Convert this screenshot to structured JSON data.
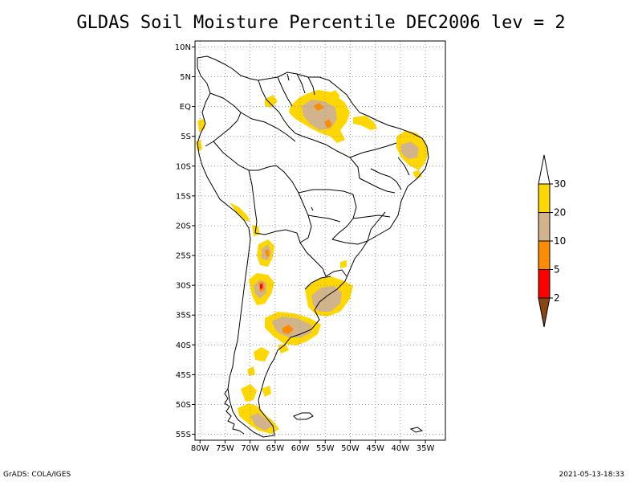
{
  "title": "GLDAS Soil Moisture Percentile DEC2006 lev = 2",
  "footer": {
    "credit": "GrADS: COLA/IGES",
    "timestamp": "2021-05-13-18:33"
  },
  "map": {
    "region": "South America",
    "lon_range": [
      -81,
      -31
    ],
    "lat_range": [
      -56,
      11
    ],
    "lon_ticks": [
      {
        "value": -80,
        "label": "80W"
      },
      {
        "value": -75,
        "label": "75W"
      },
      {
        "value": -70,
        "label": "70W"
      },
      {
        "value": -65,
        "label": "65W"
      },
      {
        "value": -60,
        "label": "60W"
      },
      {
        "value": -55,
        "label": "55W"
      },
      {
        "value": -50,
        "label": "50W"
      },
      {
        "value": -45,
        "label": "45W"
      },
      {
        "value": -40,
        "label": "40W"
      },
      {
        "value": -35,
        "label": "35W"
      }
    ],
    "lat_ticks": [
      {
        "value": 10,
        "label": "10N"
      },
      {
        "value": 5,
        "label": "5N"
      },
      {
        "value": 0,
        "label": "EQ"
      },
      {
        "value": -5,
        "label": "5S"
      },
      {
        "value": -10,
        "label": "10S"
      },
      {
        "value": -15,
        "label": "15S"
      },
      {
        "value": -20,
        "label": "20S"
      },
      {
        "value": -25,
        "label": "25S"
      },
      {
        "value": -30,
        "label": "30S"
      },
      {
        "value": -35,
        "label": "35S"
      },
      {
        "value": -40,
        "label": "40S"
      },
      {
        "value": -45,
        "label": "45S"
      },
      {
        "value": -50,
        "label": "50S"
      },
      {
        "value": -55,
        "label": "55S"
      }
    ],
    "grid": "dotted"
  },
  "legend": {
    "orientation": "vertical",
    "placement": "right",
    "levels": [
      {
        "label": "2"
      },
      {
        "label": "5"
      },
      {
        "label": "10"
      },
      {
        "label": "20"
      },
      {
        "label": "30"
      }
    ],
    "bins": [
      {
        "range": "<2",
        "color": "#8b4513"
      },
      {
        "range": "2-5",
        "color": "#ff0000"
      },
      {
        "range": "5-10",
        "color": "#ff8c00"
      },
      {
        "range": "10-20",
        "color": "#d2b48c"
      },
      {
        "range": "20-30",
        "color": "#ffd700"
      },
      {
        "range": ">30",
        "color": "#ffffff"
      }
    ]
  },
  "colors": {
    "lt30": "#ffd700",
    "lt20": "#d2b48c",
    "lt10": "#ff8c00",
    "lt5": "#ff0000",
    "lt2": "#8b4513"
  },
  "anomaly_regions": [
    {
      "name": "northern-amazon-dry",
      "lon": -54.5,
      "lat": -1.5,
      "max_class": "lt10"
    },
    {
      "name": "ne-brazil-dry",
      "lon": -37.5,
      "lat": -7.0,
      "max_class": "lt20"
    },
    {
      "name": "nw-argentina-dry",
      "lon": -67.0,
      "lat": -24.0,
      "max_class": "lt5"
    },
    {
      "name": "cuyo-dry",
      "lon": -67.5,
      "lat": -30.0,
      "max_class": "lt5"
    },
    {
      "name": "uruguay-rs-dry",
      "lon": -54.5,
      "lat": -31.0,
      "max_class": "lt20"
    },
    {
      "name": "pampas-dry",
      "lon": -61.5,
      "lat": -37.0,
      "max_class": "lt10"
    },
    {
      "name": "patagonia-south-dry",
      "lon": -69.5,
      "lat": -53.0,
      "max_class": "lt20"
    }
  ]
}
